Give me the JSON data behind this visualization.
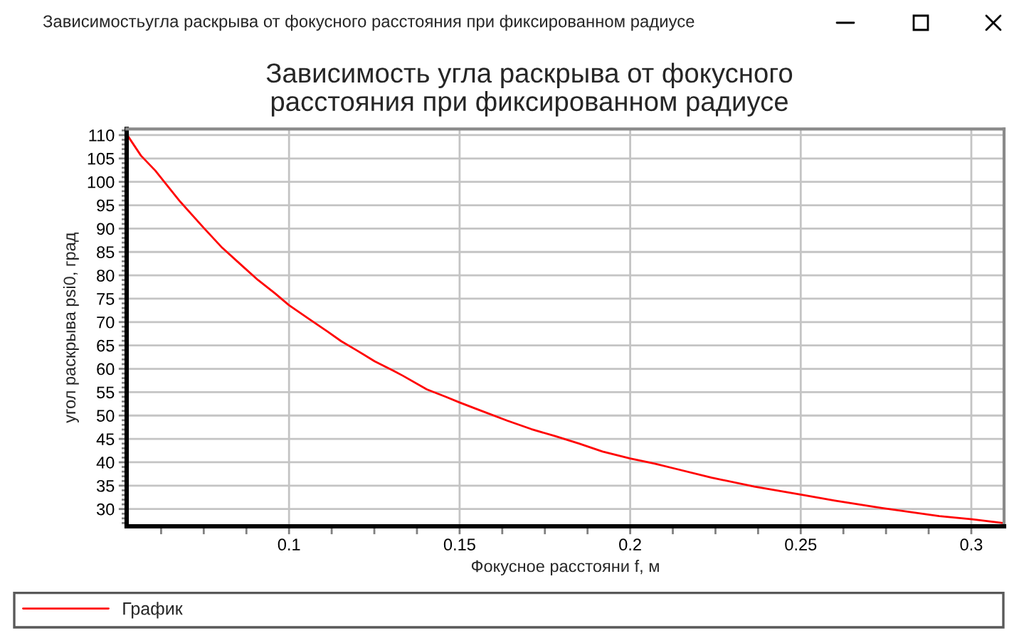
{
  "chart_data": {
    "type": "line",
    "title": "Зависимость угла раскрыва от фокусного\nрасстояния при фиксированном радиусе",
    "xlabel": "Фокусное расстояни f, м",
    "ylabel": "угол раскрыва psi0, град",
    "annotations": [
      "Зависимостьугла раскрыва от фокусного расстояния при фиксированном радиусе"
    ],
    "x": [
      0.0524,
      0.0566,
      0.0608,
      0.0678,
      0.0748,
      0.0804,
      0.086,
      0.0909,
      0.0958,
      0.1,
      0.1056,
      0.1112,
      0.1153,
      0.1195,
      0.1251,
      0.1306,
      0.1334,
      0.1404,
      0.146,
      0.15,
      0.1557,
      0.164,
      0.171,
      0.178,
      0.185,
      0.1919,
      0.2,
      0.2072,
      0.2128,
      0.2239,
      0.2364,
      0.25,
      0.26,
      0.2739,
      0.2906,
      0.3003,
      0.3093
    ],
    "series": [
      {
        "name": "График",
        "color": "#ff0000",
        "values": [
          110.2,
          105.6,
          102.4,
          96.0,
          90.3,
          85.9,
          82.2,
          79.0,
          76.2,
          73.6,
          70.8,
          68.0,
          65.9,
          64.1,
          61.6,
          59.6,
          58.5,
          55.6,
          54.0,
          52.8,
          51.2,
          48.9,
          47.1,
          45.6,
          44.0,
          42.3,
          40.8,
          39.7,
          38.7,
          36.7,
          34.8,
          33.1,
          31.8,
          30.2,
          28.5,
          27.8,
          27.0
        ]
      }
    ],
    "xlim": [
      0.0524,
      0.3096
    ],
    "ylim": [
      26.3,
      111.3
    ],
    "xticks": [
      {
        "value": 0.0625,
        "label": null
      },
      {
        "value": 0.075,
        "label": null
      },
      {
        "value": 0.0875,
        "label": null
      },
      0.1,
      {
        "value": 0.1125,
        "label": null
      },
      {
        "value": 0.125,
        "label": null
      },
      {
        "value": 0.1375,
        "label": null
      },
      0.15,
      {
        "value": 0.1625,
        "label": null
      },
      {
        "value": 0.175,
        "label": null
      },
      {
        "value": 0.1875,
        "label": null
      },
      0.2,
      {
        "value": 0.2125,
        "label": null
      },
      {
        "value": 0.225,
        "label": null
      },
      {
        "value": 0.2375,
        "label": null
      },
      0.25,
      {
        "value": 0.2625,
        "label": null
      },
      {
        "value": 0.275,
        "label": null
      },
      {
        "value": 0.2875,
        "label": null
      },
      0.3
    ],
    "yticks": [
      {
        "value": 27,
        "label": null
      },
      {
        "value": 28,
        "label": null
      },
      {
        "value": 29,
        "label": null
      },
      30,
      {
        "value": 31,
        "label": null
      },
      {
        "value": 32,
        "label": null
      },
      {
        "value": 33,
        "label": null
      },
      {
        "value": 34,
        "label": null
      },
      35,
      {
        "value": 36,
        "label": null
      },
      {
        "value": 37,
        "label": null
      },
      {
        "value": 38,
        "label": null
      },
      {
        "value": 39,
        "label": null
      },
      40,
      {
        "value": 41,
        "label": null
      },
      {
        "value": 42,
        "label": null
      },
      {
        "value": 43,
        "label": null
      },
      {
        "value": 44,
        "label": null
      },
      45,
      {
        "value": 46,
        "label": null
      },
      {
        "value": 47,
        "label": null
      },
      {
        "value": 48,
        "label": null
      },
      {
        "value": 49,
        "label": null
      },
      50,
      {
        "value": 51,
        "label": null
      },
      {
        "value": 52,
        "label": null
      },
      {
        "value": 53,
        "label": null
      },
      {
        "value": 54,
        "label": null
      },
      55,
      {
        "value": 56,
        "label": null
      },
      {
        "value": 57,
        "label": null
      },
      {
        "value": 58,
        "label": null
      },
      {
        "value": 59,
        "label": null
      },
      60,
      {
        "value": 61,
        "label": null
      },
      {
        "value": 62,
        "label": null
      },
      {
        "value": 63,
        "label": null
      },
      {
        "value": 64,
        "label": null
      },
      65,
      {
        "value": 66,
        "label": null
      },
      {
        "value": 67,
        "label": null
      },
      {
        "value": 68,
        "label": null
      },
      {
        "value": 69,
        "label": null
      },
      70,
      {
        "value": 71,
        "label": null
      },
      {
        "value": 72,
        "label": null
      },
      {
        "value": 73,
        "label": null
      },
      {
        "value": 74,
        "label": null
      },
      75,
      {
        "value": 76,
        "label": null
      },
      {
        "value": 77,
        "label": null
      },
      {
        "value": 78,
        "label": null
      },
      {
        "value": 79,
        "label": null
      },
      80,
      {
        "value": 81,
        "label": null
      },
      {
        "value": 82,
        "label": null
      },
      {
        "value": 83,
        "label": null
      },
      {
        "value": 84,
        "label": null
      },
      85,
      {
        "value": 86,
        "label": null
      },
      {
        "value": 87,
        "label": null
      },
      {
        "value": 88,
        "label": null
      },
      {
        "value": 89,
        "label": null
      },
      90,
      {
        "value": 91,
        "label": null
      },
      {
        "value": 92,
        "label": null
      },
      {
        "value": 93,
        "label": null
      },
      {
        "value": 94,
        "label": null
      },
      95,
      {
        "value": 96,
        "label": null
      },
      {
        "value": 97,
        "label": null
      },
      {
        "value": 98,
        "label": null
      },
      {
        "value": 99,
        "label": null
      },
      100,
      {
        "value": 101,
        "label": null
      },
      {
        "value": 102,
        "label": null
      },
      {
        "value": 103,
        "label": null
      },
      {
        "value": 104,
        "label": null
      },
      105,
      {
        "value": 106,
        "label": null
      },
      {
        "value": 107,
        "label": null
      },
      {
        "value": 108,
        "label": null
      },
      {
        "value": 109,
        "label": null
      },
      110,
      {
        "value": 111,
        "label": null
      }
    ],
    "grid": true,
    "legend": "bottom",
    "line_style": "solid"
  }
}
